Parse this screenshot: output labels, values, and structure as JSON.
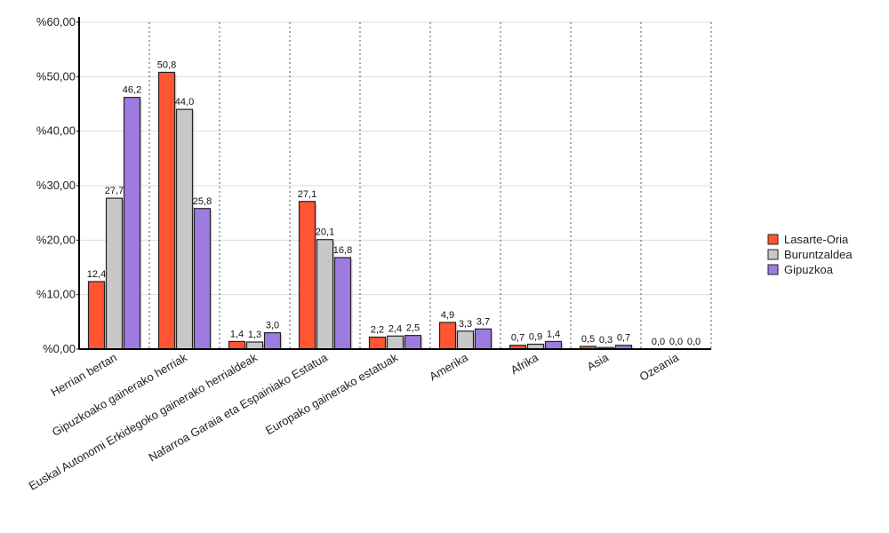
{
  "chart_data": {
    "type": "bar",
    "categories": [
      "Herrian bertan",
      "Gipuzkoako gainerako herriak",
      "Euskal Autonomi Erkidegoko gainerako herrialdeak",
      "Nafarroa Garaia eta Espainiako Estatua",
      "Europako gainerako estatuak",
      "Amerika",
      "Afrika",
      "Asia",
      "Ozeania"
    ],
    "series": [
      {
        "name": "Lasarte-Oria",
        "color": "#ff5533",
        "values": [
          12.4,
          50.8,
          1.4,
          27.1,
          2.2,
          4.9,
          0.7,
          0.5,
          0.0
        ],
        "labels": [
          "12,4",
          "50,8",
          "1,4",
          "27,1",
          "2,2",
          "4,9",
          "0,7",
          "0,5",
          "0,0"
        ]
      },
      {
        "name": "Buruntzaldea",
        "color": "#c8c8c8",
        "values": [
          27.7,
          44.0,
          1.3,
          20.1,
          2.4,
          3.3,
          0.9,
          0.3,
          0.0
        ],
        "labels": [
          "27,7",
          "44,0",
          "1,3",
          "20,1",
          "2,4",
          "3,3",
          "0,9",
          "0,3",
          "0,0"
        ]
      },
      {
        "name": "Gipuzkoa",
        "color": "#9e7be0",
        "values": [
          46.2,
          25.8,
          3.0,
          16.8,
          2.5,
          3.7,
          1.4,
          0.7,
          0.0
        ],
        "labels": [
          "46,2",
          "25,8",
          "3,0",
          "16,8",
          "2,5",
          "3,7",
          "1,4",
          "0,7",
          "0,0"
        ]
      }
    ],
    "yticks": [
      0,
      10,
      20,
      30,
      40,
      50,
      60
    ],
    "ytick_labels": [
      "%0,00",
      "%10,00",
      "%20,00",
      "%30,00",
      "%40,00",
      "%50,00",
      "%60,00"
    ],
    "ylim": [
      0,
      60
    ],
    "title": "",
    "xlabel": "",
    "ylabel": "",
    "grid": "horizontal solid, vertical dotted",
    "legend_position": "right"
  }
}
